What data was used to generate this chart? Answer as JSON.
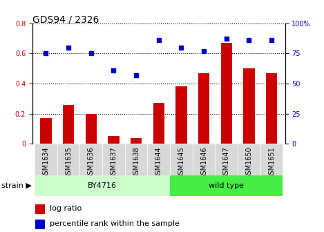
{
  "title": "GDS94 / 2326",
  "categories": [
    "GSM1634",
    "GSM1635",
    "GSM1636",
    "GSM1637",
    "GSM1638",
    "GSM1644",
    "GSM1645",
    "GSM1646",
    "GSM1647",
    "GSM1650",
    "GSM1651"
  ],
  "log_ratio": [
    0.17,
    0.26,
    0.2,
    0.05,
    0.04,
    0.27,
    0.38,
    0.47,
    0.67,
    0.5,
    0.47
  ],
  "percentile_rank_pct": [
    75,
    80,
    75,
    61,
    57,
    86,
    80,
    77,
    87,
    86,
    86
  ],
  "bar_color": "#cc0000",
  "dot_color": "#0000cc",
  "by4716_indices": [
    0,
    1,
    2,
    3,
    4,
    5
  ],
  "wildtype_indices": [
    6,
    7,
    8,
    9,
    10
  ],
  "by4716_label": "BY4716",
  "wildtype_label": "wild type",
  "strain_label": "strain",
  "legend_bar_label": "log ratio",
  "legend_dot_label": "percentile rank within the sample",
  "ylim_left": [
    0,
    0.8
  ],
  "ylim_right": [
    0,
    100
  ],
  "yticks_left": [
    0,
    0.2,
    0.4,
    0.6,
    0.8
  ],
  "ytick_labels_left": [
    "0",
    "0.2",
    "0.4",
    "0.6",
    "0.8"
  ],
  "yticks_right": [
    0,
    25,
    50,
    75,
    100
  ],
  "ytick_labels_right": [
    "0",
    "25",
    "50",
    "75",
    "100%"
  ],
  "bg_color_by4716": "#ccffcc",
  "bg_color_wildtype": "#44ee44",
  "plot_bg_color": "#ffffff",
  "xtick_bg_color": "#d8d8d8",
  "title_fontsize": 10,
  "tick_fontsize": 7,
  "label_fontsize": 8,
  "bar_width": 0.5
}
